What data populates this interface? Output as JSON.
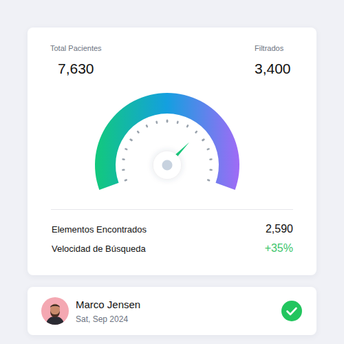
{
  "chart_data": {
    "type": "gauge",
    "min": 0,
    "max": 100,
    "value": 70,
    "tick_labels": false
  },
  "header": {
    "left": {
      "label": "Total Pacientes",
      "value": "7,630"
    },
    "right": {
      "label": "Filtrados",
      "value": "3,400"
    }
  },
  "stats": [
    {
      "label": "Elementos Encontrados",
      "value": "2,590"
    },
    {
      "label": "Velocidad de Búsqueda",
      "value": "+35%",
      "color": "#3cc56b"
    }
  ],
  "user": {
    "name": "Marco Jensen",
    "date": "Sat, Sep 2024"
  }
}
